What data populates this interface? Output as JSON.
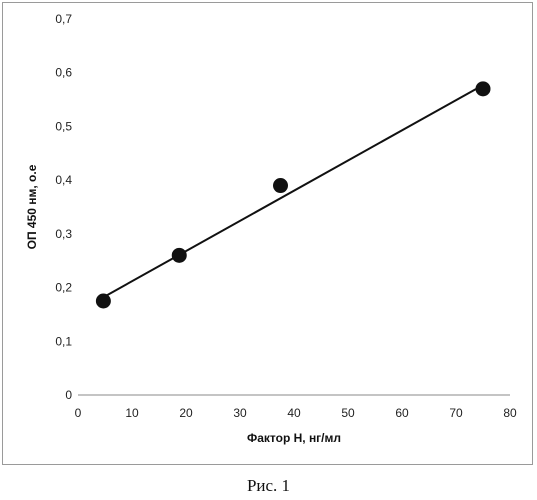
{
  "chart_data": {
    "type": "scatter",
    "title": "",
    "xlabel": "Фактор Н, нг/мл",
    "ylabel": "ОП 450 нм, о.е",
    "xlim": [
      0,
      80
    ],
    "ylim": [
      0,
      0.7
    ],
    "x_ticks": [
      "0",
      "10",
      "20",
      "30",
      "40",
      "50",
      "60",
      "70",
      "80"
    ],
    "y_ticks": [
      "0",
      "0,1",
      "0,2",
      "0,3",
      "0,4",
      "0,5",
      "0,6",
      "0,7"
    ],
    "grid": false,
    "legend": "none",
    "series": [
      {
        "x": [
          4.7,
          18.75,
          37.5,
          75
        ],
        "y": [
          0.175,
          0.26,
          0.39,
          0.57
        ],
        "marker_color": "#111111"
      }
    ],
    "trendline": {
      "type": "linear",
      "x": [
        4.7,
        75
      ],
      "y": [
        0.182,
        0.577
      ],
      "color": "#111111"
    }
  },
  "caption": "Рис. 1"
}
